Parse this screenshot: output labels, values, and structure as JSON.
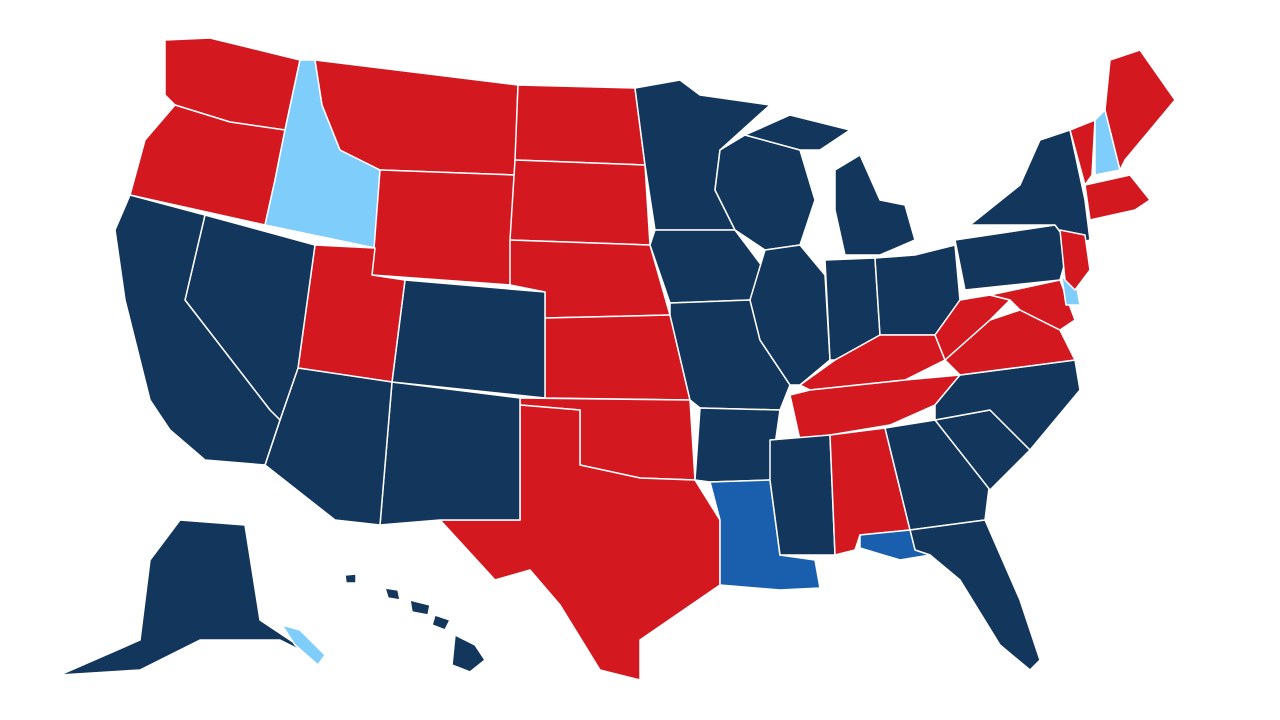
{
  "map": {
    "palette": [
      "#d3191f",
      "#13365c",
      "#7fcdfb",
      "#1a5fae"
    ]
  }
}
